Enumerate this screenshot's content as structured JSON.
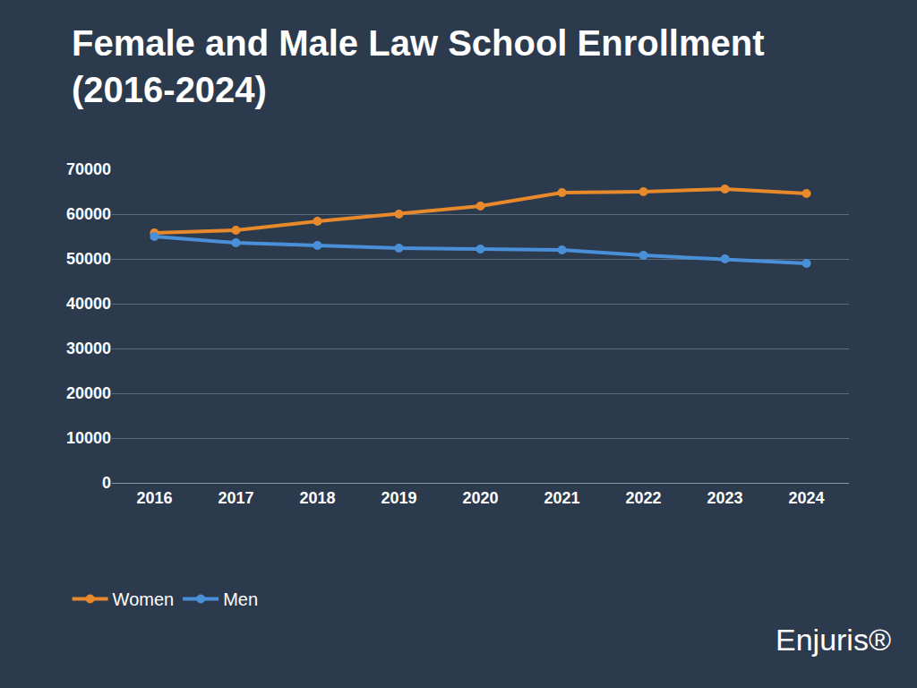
{
  "chart_data": {
    "type": "line",
    "title": "Female and Male Law School Enrollment (2016-2024)",
    "categories": [
      "2016",
      "2017",
      "2018",
      "2019",
      "2020",
      "2021",
      "2022",
      "2023",
      "2024"
    ],
    "series": [
      {
        "name": "Women",
        "color": "#e8892b",
        "values": [
          55800,
          56400,
          58400,
          60000,
          61800,
          64800,
          65000,
          65600,
          64600
        ]
      },
      {
        "name": "Men",
        "color": "#4a90d9",
        "values": [
          55000,
          53600,
          53000,
          52400,
          52200,
          52000,
          50800,
          50000,
          49000
        ]
      }
    ],
    "ylim": [
      0,
      70000
    ],
    "yticks": [
      0,
      10000,
      20000,
      30000,
      40000,
      50000,
      60000,
      70000
    ],
    "grid": true,
    "legend": "bottom-left",
    "marker": "circle",
    "line_style": "solid",
    "annotations": [
      {
        "text": "Enjuris®"
      }
    ]
  }
}
